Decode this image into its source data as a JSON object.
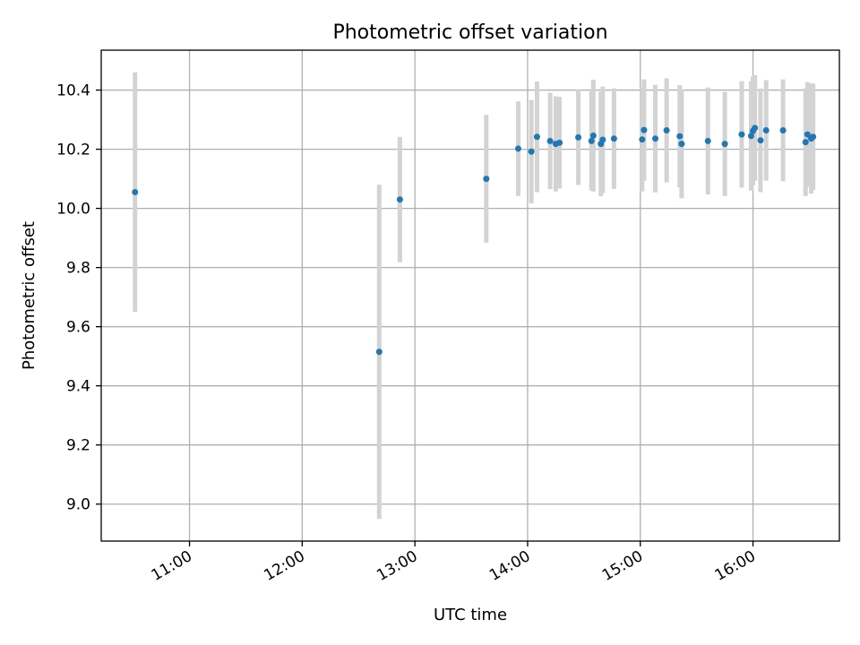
{
  "chart_data": {
    "type": "scatter",
    "title": "Photometric offset variation",
    "xlabel": "UTC time",
    "ylabel": "Photometric offset",
    "x_unit": "UTC time (HH:MM)",
    "xlim": [
      "10:13",
      "16:46"
    ],
    "ylim": [
      8.875,
      10.535
    ],
    "x_ticks": [
      "11:00",
      "12:00",
      "13:00",
      "14:00",
      "15:00",
      "16:00"
    ],
    "y_ticks": [
      "9.0",
      "9.2",
      "9.4",
      "9.6",
      "9.8",
      "10.0",
      "10.2",
      "10.4"
    ],
    "grid": true,
    "legend": "none",
    "colors": {
      "point": "#1f77b4",
      "errorbar": "#d3d3d3",
      "grid": "#b0b0b0"
    },
    "points": [
      {
        "x": "10:31",
        "y": 10.055,
        "err": 0.405
      },
      {
        "x": "12:41",
        "y": 9.515,
        "err": 0.565
      },
      {
        "x": "12:52",
        "y": 10.03,
        "err": 0.212
      },
      {
        "x": "13:38",
        "y": 10.1,
        "err": 0.216
      },
      {
        "x": "13:55",
        "y": 10.202,
        "err": 0.16
      },
      {
        "x": "14:02",
        "y": 10.192,
        "err": 0.175
      },
      {
        "x": "14:05",
        "y": 10.242,
        "err": 0.187
      },
      {
        "x": "14:12",
        "y": 10.228,
        "err": 0.163
      },
      {
        "x": "14:15",
        "y": 10.218,
        "err": 0.161
      },
      {
        "x": "14:17",
        "y": 10.222,
        "err": 0.155
      },
      {
        "x": "14:27",
        "y": 10.24,
        "err": 0.161
      },
      {
        "x": "14:34",
        "y": 10.228,
        "err": 0.168
      },
      {
        "x": "14:35",
        "y": 10.246,
        "err": 0.189
      },
      {
        "x": "14:39",
        "y": 10.218,
        "err": 0.177
      },
      {
        "x": "14:40",
        "y": 10.232,
        "err": 0.18
      },
      {
        "x": "14:46",
        "y": 10.236,
        "err": 0.17
      },
      {
        "x": "15:01",
        "y": 10.233,
        "err": 0.176
      },
      {
        "x": "15:02",
        "y": 10.265,
        "err": 0.171
      },
      {
        "x": "15:08",
        "y": 10.236,
        "err": 0.182
      },
      {
        "x": "15:14",
        "y": 10.264,
        "err": 0.176
      },
      {
        "x": "15:21",
        "y": 10.244,
        "err": 0.173
      },
      {
        "x": "15:22",
        "y": 10.218,
        "err": 0.184
      },
      {
        "x": "15:36",
        "y": 10.228,
        "err": 0.181
      },
      {
        "x": "15:45",
        "y": 10.218,
        "err": 0.176
      },
      {
        "x": "15:54",
        "y": 10.25,
        "err": 0.18
      },
      {
        "x": "15:59",
        "y": 10.245,
        "err": 0.185
      },
      {
        "x": "16:00",
        "y": 10.262,
        "err": 0.184
      },
      {
        "x": "16:01",
        "y": 10.272,
        "err": 0.178
      },
      {
        "x": "16:04",
        "y": 10.23,
        "err": 0.175
      },
      {
        "x": "16:07",
        "y": 10.264,
        "err": 0.17
      },
      {
        "x": "16:16",
        "y": 10.264,
        "err": 0.172
      },
      {
        "x": "16:28",
        "y": 10.224,
        "err": 0.182
      },
      {
        "x": "16:29",
        "y": 10.25,
        "err": 0.177
      },
      {
        "x": "16:31",
        "y": 10.236,
        "err": 0.186
      },
      {
        "x": "16:32",
        "y": 10.242,
        "err": 0.18
      }
    ]
  }
}
